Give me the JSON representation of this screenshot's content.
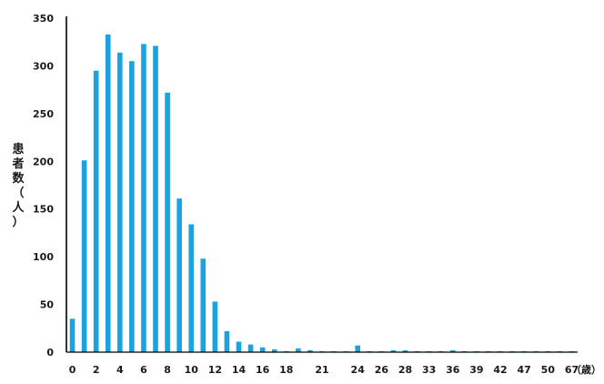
{
  "chart_data": {
    "type": "bar",
    "title": "",
    "ylabel": "患者数（人）",
    "xlabel_unit": "（歳）",
    "ylim": [
      0,
      350
    ],
    "y_ticks": [
      0,
      50,
      100,
      150,
      200,
      250,
      300,
      350
    ],
    "grid": false,
    "legend": "none",
    "bar_color": "#1BA3E0",
    "axis_color": "#000000",
    "categories": [
      "0",
      "1",
      "2",
      "3",
      "4",
      "5",
      "6",
      "7",
      "8",
      "9",
      "10",
      "11",
      "12",
      "13",
      "14",
      "15",
      "16",
      "17",
      "18",
      "19",
      "20",
      "21",
      "22",
      "23",
      "24",
      "25",
      "26",
      "27",
      "28",
      "29",
      "33",
      "34",
      "36",
      "37",
      "39",
      "40",
      "42",
      "44",
      "47",
      "48",
      "50",
      "55",
      "67"
    ],
    "x_tick_labels": [
      "0",
      "2",
      "4",
      "6",
      "8",
      "10",
      "12",
      "14",
      "16",
      "18",
      "21",
      "24",
      "26",
      "28",
      "33",
      "36",
      "39",
      "42",
      "47",
      "50",
      "67"
    ],
    "values": [
      35,
      201,
      295,
      333,
      314,
      305,
      323,
      321,
      272,
      161,
      134,
      98,
      53,
      22,
      11,
      8,
      5,
      3,
      1,
      4,
      2,
      1,
      1,
      1,
      7,
      1,
      1,
      2,
      2,
      1,
      1,
      1,
      2,
      1,
      1,
      1,
      1,
      1,
      1,
      1,
      1,
      1,
      1
    ]
  }
}
